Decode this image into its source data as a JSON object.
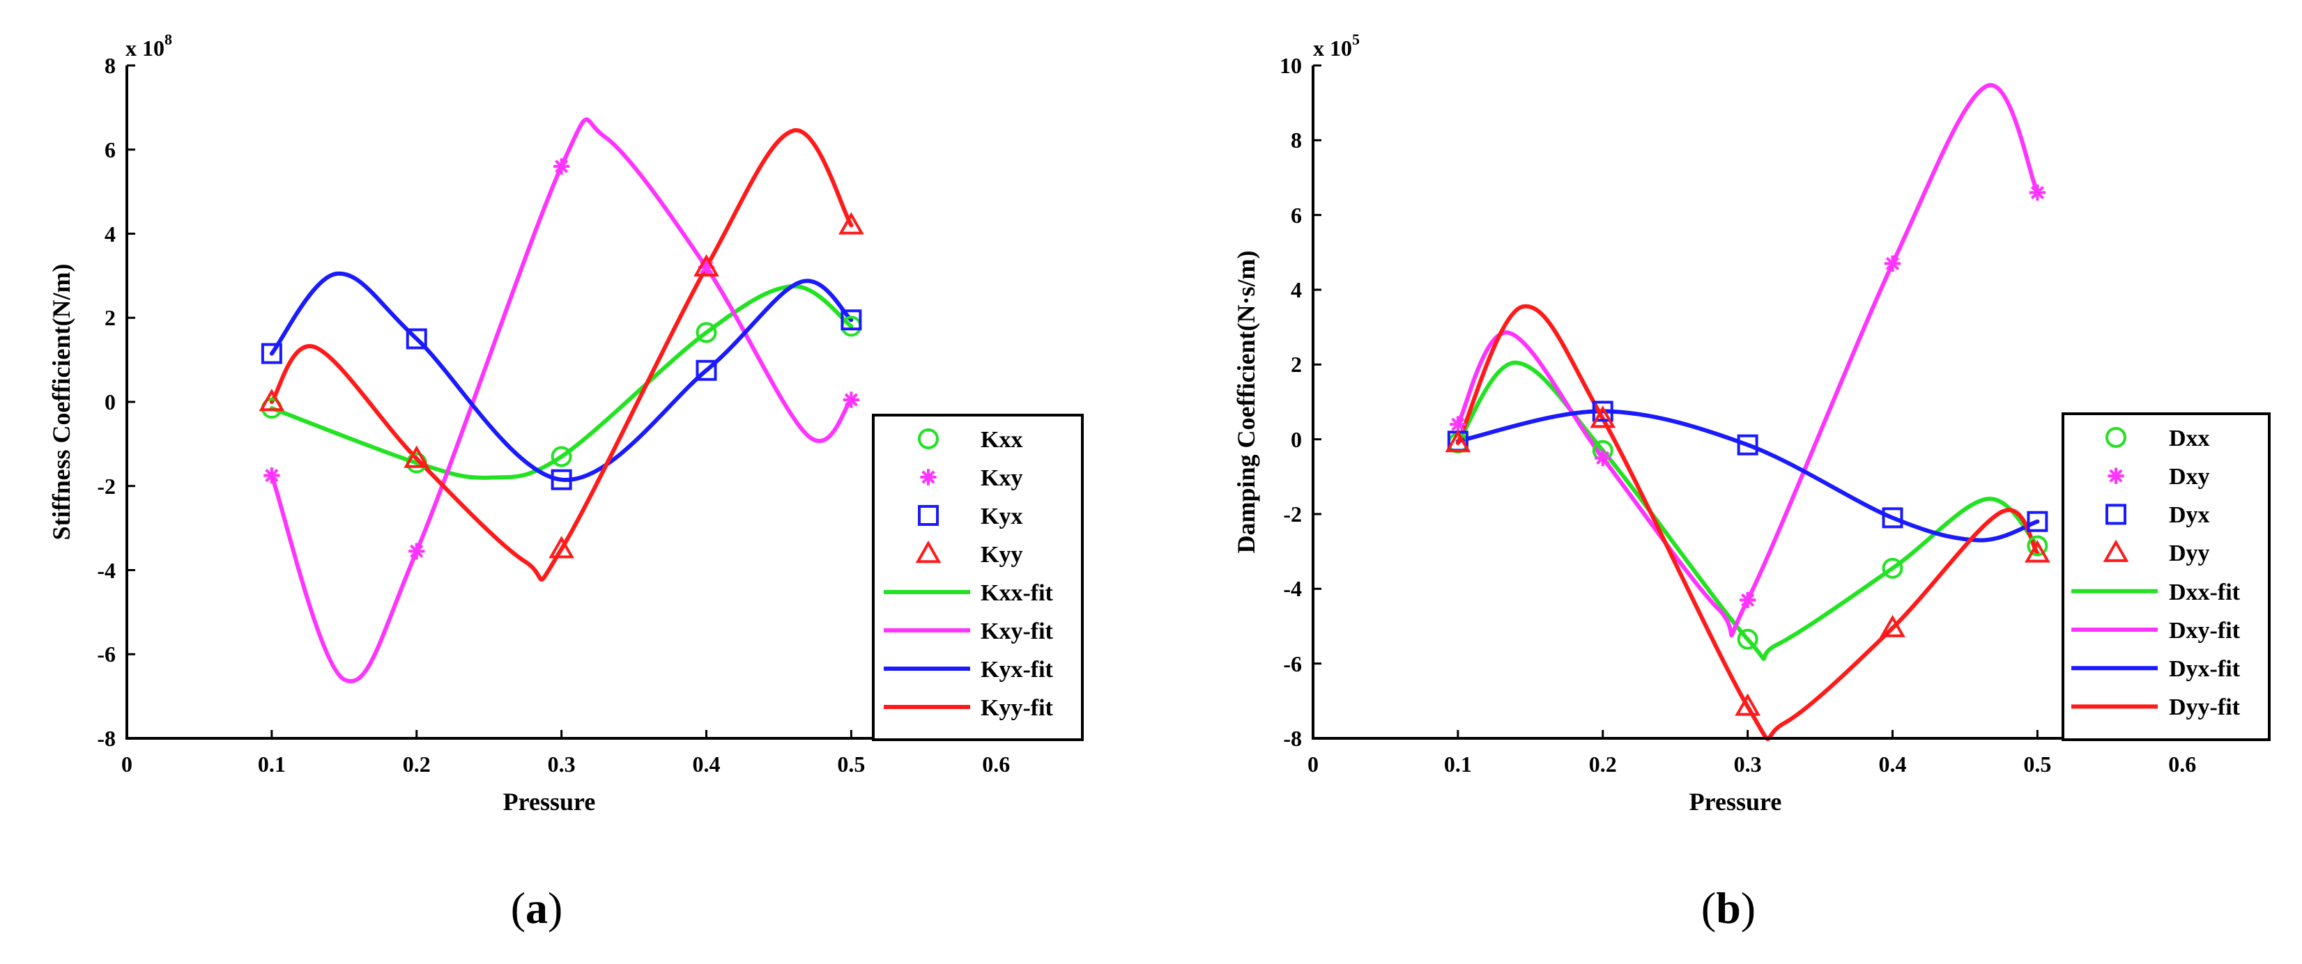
{
  "chart_data": [
    {
      "type": "line",
      "panel_label": "a",
      "xlabel": "Pressure",
      "ylabel": "Stiffness Coefficient(N/m)",
      "y_multiplier": "x 10",
      "y_exponent": "8",
      "xlim": [
        0,
        0.66
      ],
      "ylim": [
        -8,
        8
      ],
      "x_ticks": [
        0,
        0.1,
        0.2,
        0.3,
        0.4,
        0.5,
        0.6
      ],
      "x_tick_labels": [
        "0",
        "0.1",
        "0.2",
        "0.3",
        "0.4",
        "0.5",
        "0.6"
      ],
      "y_ticks": [
        -8,
        -6,
        -4,
        -2,
        0,
        2,
        4,
        6,
        8
      ],
      "y_tick_labels": [
        "-8",
        "-6",
        "-4",
        "-2",
        "0",
        "2",
        "4",
        "6",
        "8"
      ],
      "legend_position": "bottom-right",
      "series": [
        {
          "name": "Kxx",
          "kind": "marker",
          "marker": "circle",
          "color": "#22e222",
          "x": [
            0.1,
            0.2,
            0.3,
            0.4,
            0.5
          ],
          "y": [
            -0.15,
            -1.45,
            -1.3,
            1.65,
            1.8
          ]
        },
        {
          "name": "Kxy",
          "kind": "marker",
          "marker": "star",
          "color": "#ff33ff",
          "x": [
            0.1,
            0.2,
            0.3,
            0.4,
            0.5
          ],
          "y": [
            -1.75,
            -3.55,
            5.6,
            3.2,
            0.05
          ]
        },
        {
          "name": "Kyx",
          "kind": "marker",
          "marker": "square",
          "color": "#1a1aff",
          "x": [
            0.1,
            0.2,
            0.3,
            0.4,
            0.5
          ],
          "y": [
            1.15,
            1.5,
            -1.85,
            0.75,
            1.95
          ]
        },
        {
          "name": "Kyy",
          "kind": "marker",
          "marker": "triangle",
          "color": "#ff1a1a",
          "x": [
            0.1,
            0.2,
            0.3,
            0.4,
            0.5
          ],
          "y": [
            0.0,
            -1.35,
            -3.5,
            3.2,
            4.2
          ]
        },
        {
          "name": "Kxx-fit",
          "kind": "line",
          "color": "#22e222",
          "x": [
            0.1,
            0.2,
            0.25,
            0.3,
            0.4,
            0.46,
            0.5
          ],
          "y": [
            -0.15,
            -1.45,
            -1.8,
            -1.3,
            1.65,
            2.75,
            1.8
          ]
        },
        {
          "name": "Kxy-fit",
          "kind": "line",
          "color": "#ff33ff",
          "x": [
            0.1,
            0.15,
            0.2,
            0.3,
            0.33,
            0.4,
            0.47,
            0.5
          ],
          "y": [
            -1.75,
            -6.6,
            -3.55,
            5.6,
            6.3,
            3.2,
            -0.8,
            0.05
          ]
        },
        {
          "name": "Kyx-fit",
          "kind": "line",
          "color": "#1a1aff",
          "x": [
            0.1,
            0.145,
            0.2,
            0.3,
            0.4,
            0.465,
            0.5
          ],
          "y": [
            1.15,
            3.05,
            1.5,
            -1.85,
            0.75,
            2.85,
            1.95
          ]
        },
        {
          "name": "Kyy-fit",
          "kind": "line",
          "color": "#ff1a1a",
          "x": [
            0.1,
            0.13,
            0.2,
            0.275,
            0.3,
            0.4,
            0.46,
            0.5
          ],
          "y": [
            0.0,
            1.3,
            -1.35,
            -3.8,
            -3.5,
            3.2,
            6.45,
            4.2
          ]
        }
      ]
    },
    {
      "type": "line",
      "panel_label": "b",
      "xlabel": "Pressure",
      "ylabel": "Damping Coefficient(N·s/m)",
      "y_multiplier": "x 10",
      "y_exponent": "5",
      "xlim": [
        0,
        0.66
      ],
      "ylim": [
        -8,
        10
      ],
      "x_ticks": [
        0,
        0.1,
        0.2,
        0.3,
        0.4,
        0.5,
        0.6
      ],
      "x_tick_labels": [
        "0",
        "0.1",
        "0.2",
        "0.3",
        "0.4",
        "0.5",
        "0.6"
      ],
      "y_ticks": [
        -8,
        -6,
        -4,
        -2,
        0,
        2,
        4,
        6,
        8,
        10
      ],
      "y_tick_labels": [
        "-8",
        "-6",
        "-4",
        "-2",
        "0",
        "2",
        "4",
        "6",
        "8",
        "10"
      ],
      "legend_position": "bottom-right",
      "series": [
        {
          "name": "Dxx",
          "kind": "marker",
          "marker": "circle",
          "color": "#22e222",
          "x": [
            0.1,
            0.2,
            0.3,
            0.4,
            0.5
          ],
          "y": [
            -0.1,
            -0.3,
            -5.35,
            -3.45,
            -2.85
          ]
        },
        {
          "name": "Dxy",
          "kind": "marker",
          "marker": "star",
          "color": "#ff33ff",
          "x": [
            0.1,
            0.2,
            0.3,
            0.4,
            0.5
          ],
          "y": [
            0.4,
            -0.5,
            -4.3,
            4.7,
            6.6
          ]
        },
        {
          "name": "Dyx",
          "kind": "marker",
          "marker": "square",
          "color": "#1a1aff",
          "x": [
            0.1,
            0.2,
            0.3,
            0.4,
            0.5
          ],
          "y": [
            -0.05,
            0.75,
            -0.15,
            -2.1,
            -2.2
          ]
        },
        {
          "name": "Dyy",
          "kind": "marker",
          "marker": "triangle",
          "color": "#ff1a1a",
          "x": [
            0.1,
            0.2,
            0.3,
            0.4,
            0.5
          ],
          "y": [
            -0.1,
            0.55,
            -7.15,
            -5.05,
            -3.05
          ]
        },
        {
          "name": "Dxx-fit",
          "kind": "line",
          "color": "#22e222",
          "x": [
            0.1,
            0.14,
            0.2,
            0.3,
            0.32,
            0.4,
            0.465,
            0.5
          ],
          "y": [
            -0.1,
            2.05,
            -0.3,
            -5.35,
            -5.5,
            -3.45,
            -1.6,
            -2.85
          ]
        },
        {
          "name": "Dxy-fit",
          "kind": "line",
          "color": "#ff33ff",
          "x": [
            0.1,
            0.135,
            0.2,
            0.28,
            0.3,
            0.4,
            0.465,
            0.5
          ],
          "y": [
            0.4,
            2.85,
            -0.5,
            -4.55,
            -4.3,
            4.7,
            9.45,
            6.6
          ]
        },
        {
          "name": "Dyx-fit",
          "kind": "line",
          "color": "#1a1aff",
          "x": [
            0.1,
            0.2,
            0.3,
            0.4,
            0.46,
            0.5
          ],
          "y": [
            -0.05,
            0.75,
            -0.15,
            -2.1,
            -2.7,
            -2.2
          ]
        },
        {
          "name": "Dyy-fit",
          "kind": "line",
          "color": "#ff1a1a",
          "x": [
            0.1,
            0.145,
            0.2,
            0.3,
            0.325,
            0.4,
            0.475,
            0.5
          ],
          "y": [
            -0.1,
            3.55,
            0.55,
            -7.15,
            -7.6,
            -5.05,
            -1.95,
            -3.05
          ]
        }
      ]
    }
  ]
}
